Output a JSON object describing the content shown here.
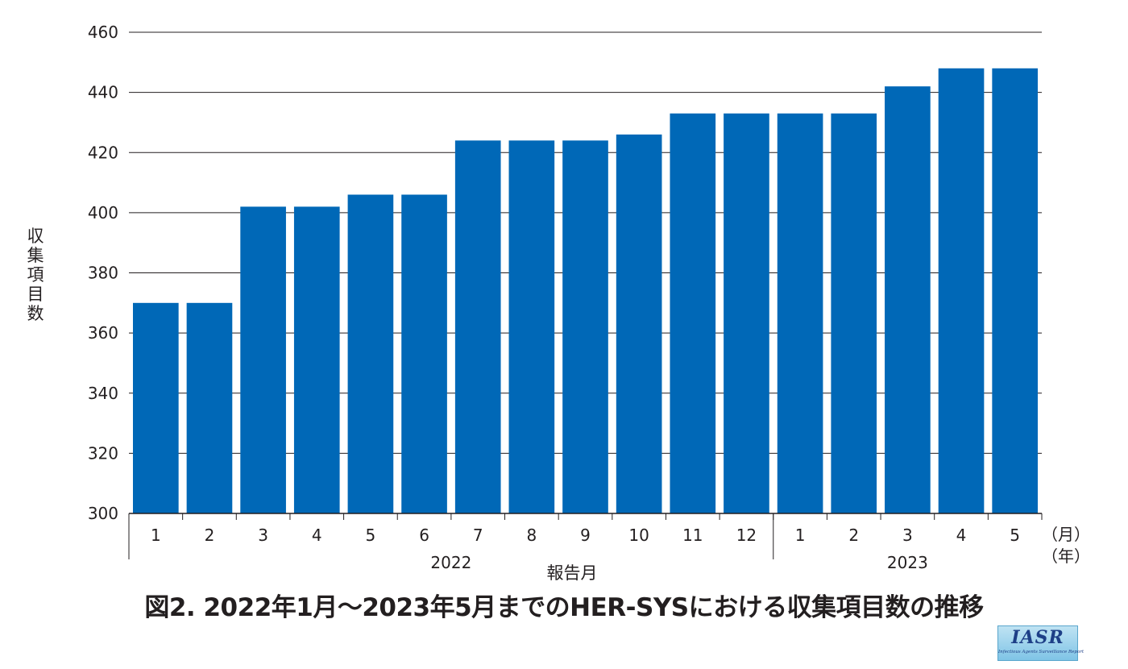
{
  "chart_data": {
    "type": "bar",
    "categories": [
      "1",
      "2",
      "3",
      "4",
      "5",
      "6",
      "7",
      "8",
      "9",
      "10",
      "11",
      "12",
      "1",
      "2",
      "3",
      "4",
      "5"
    ],
    "values": [
      370,
      370,
      402,
      402,
      406,
      406,
      424,
      424,
      424,
      426,
      433,
      433,
      433,
      433,
      442,
      448,
      448
    ],
    "year_groups": [
      {
        "label": "2022",
        "count": 12
      },
      {
        "label": "2023",
        "count": 5
      }
    ],
    "ylabel": "収集項目数",
    "xlabel": "報告月",
    "x_unit_month": "（月）",
    "x_unit_year": "（年）",
    "ylim": [
      300,
      460
    ],
    "yticks": [
      300,
      320,
      340,
      360,
      380,
      400,
      420,
      440,
      460
    ],
    "grid": true,
    "bar_color": "#0068b7"
  },
  "caption": "図2. 2022年1月〜2023年5月までのHER-SYSにおける収集項目数の推移",
  "logo": {
    "main": "IASR",
    "sub": "Infectious Agents Surveillance Report"
  }
}
